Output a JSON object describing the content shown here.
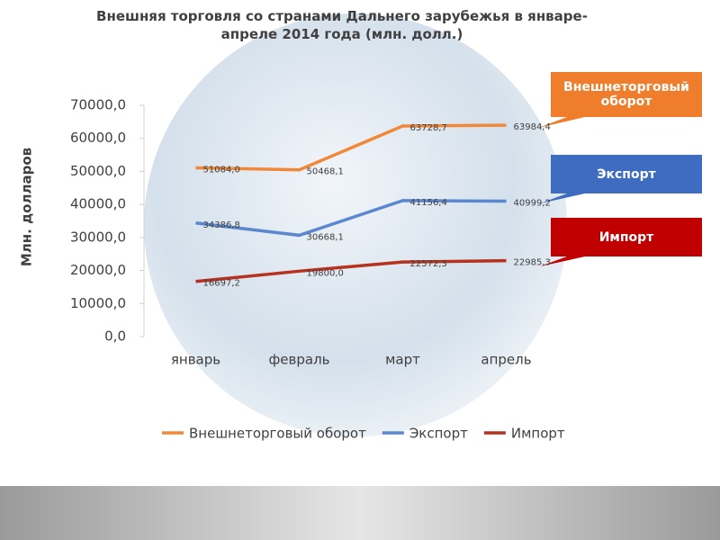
{
  "chart_data": {
    "type": "line",
    "title": "Внешняя торговля со странами Дальнего зарубежья в январе-апреле 2014 года (млн. долл.)",
    "y_label": "Млн. долларов",
    "categories": [
      "январь",
      "февраль",
      "март",
      "апрель"
    ],
    "ylim": [
      0,
      70000
    ],
    "yticks": [
      {
        "value": 0,
        "label": "0,0"
      },
      {
        "value": 10000,
        "label": "10000,0"
      },
      {
        "value": 20000,
        "label": "20000,0"
      },
      {
        "value": 30000,
        "label": "30000,0"
      },
      {
        "value": 40000,
        "label": "40000,0"
      },
      {
        "value": 50000,
        "label": "50000,0"
      },
      {
        "value": 60000,
        "label": "60000,0"
      },
      {
        "value": 70000,
        "label": "70000,0"
      }
    ],
    "grid": false,
    "legend": "bottom",
    "series": [
      {
        "name": "Внешнеторговый оборот",
        "color": "#f0883a",
        "values": [
          51084.0,
          50468.1,
          63728.7,
          63984.4
        ],
        "value_labels": [
          "51084,0",
          "50468,1",
          "63728,7",
          "63984,4"
        ]
      },
      {
        "name": "Экспорт",
        "color": "#5b87d0",
        "values": [
          34386.8,
          30668.1,
          41156.4,
          40999.2
        ],
        "value_labels": [
          "34386,8",
          "30668,1",
          "41156,4",
          "40999,2"
        ]
      },
      {
        "name": "Импорт",
        "color": "#b5321e",
        "values": [
          16697.2,
          19800.0,
          22572.3,
          22985.3
        ],
        "value_labels": [
          "16697,2",
          "19800,0",
          "22572,3",
          "22985,3"
        ]
      }
    ]
  }
}
